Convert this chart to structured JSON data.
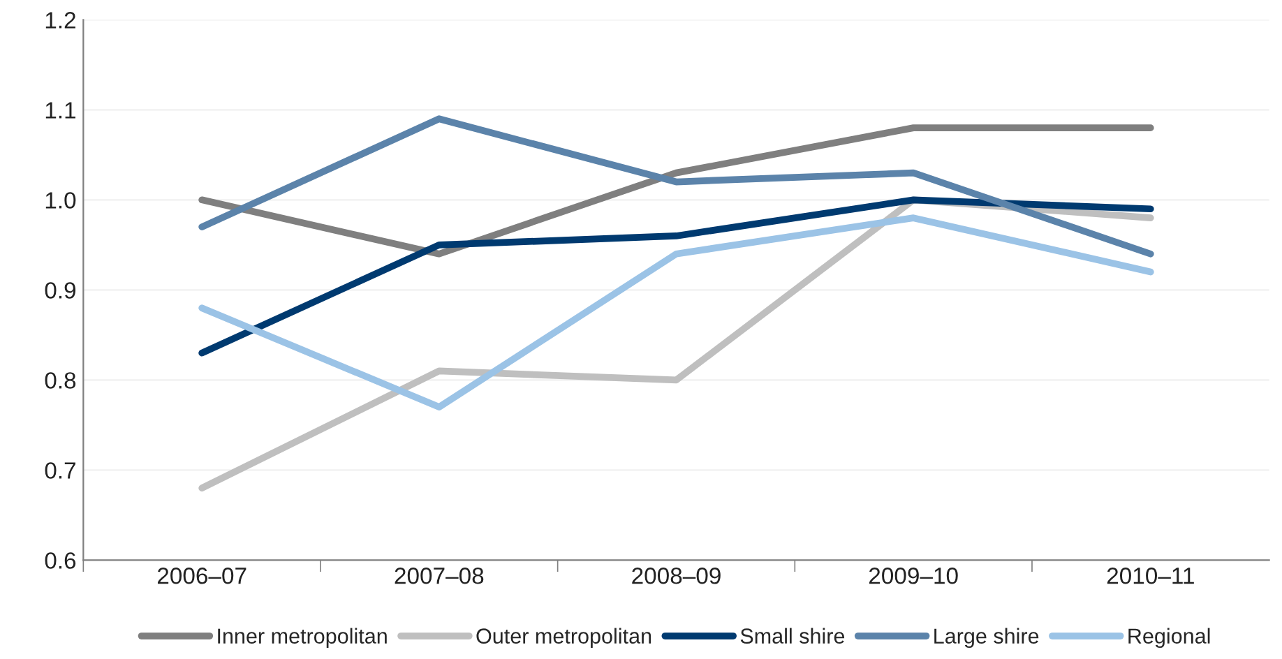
{
  "chart_data": {
    "type": "line",
    "categories": [
      "2006–07",
      "2007–08",
      "2008–09",
      "2009–10",
      "2010–11"
    ],
    "series": [
      {
        "name": "Inner metropolitan",
        "color": "#7f7f7f",
        "values": [
          1.0,
          0.94,
          1.03,
          1.08,
          1.08
        ]
      },
      {
        "name": "Outer metropolitan",
        "color": "#bfbfbf",
        "values": [
          0.68,
          0.81,
          0.8,
          1.0,
          0.98
        ]
      },
      {
        "name": "Small shire",
        "color": "#003a70",
        "values": [
          0.83,
          0.95,
          0.96,
          1.0,
          0.99
        ]
      },
      {
        "name": "Large shire",
        "color": "#5b83aa",
        "values": [
          0.97,
          1.09,
          1.02,
          1.03,
          0.94
        ]
      },
      {
        "name": "Regional",
        "color": "#9bc3e6",
        "values": [
          0.88,
          0.77,
          0.94,
          0.98,
          0.92
        ]
      }
    ],
    "ylim": [
      0.6,
      1.2
    ],
    "yticks": [
      {
        "value": 0.6,
        "label": "0.6"
      },
      {
        "value": 0.7,
        "label": "0.7"
      },
      {
        "value": 0.8,
        "label": "0.8"
      },
      {
        "value": 0.9,
        "label": "0.9"
      },
      {
        "value": 1.0,
        "label": "1.0"
      },
      {
        "value": 1.1,
        "label": "1.1"
      },
      {
        "value": 1.2,
        "label": "1.2"
      }
    ],
    "grid": "y",
    "legend": "bottom",
    "marker": "none",
    "line_style": "solid"
  }
}
